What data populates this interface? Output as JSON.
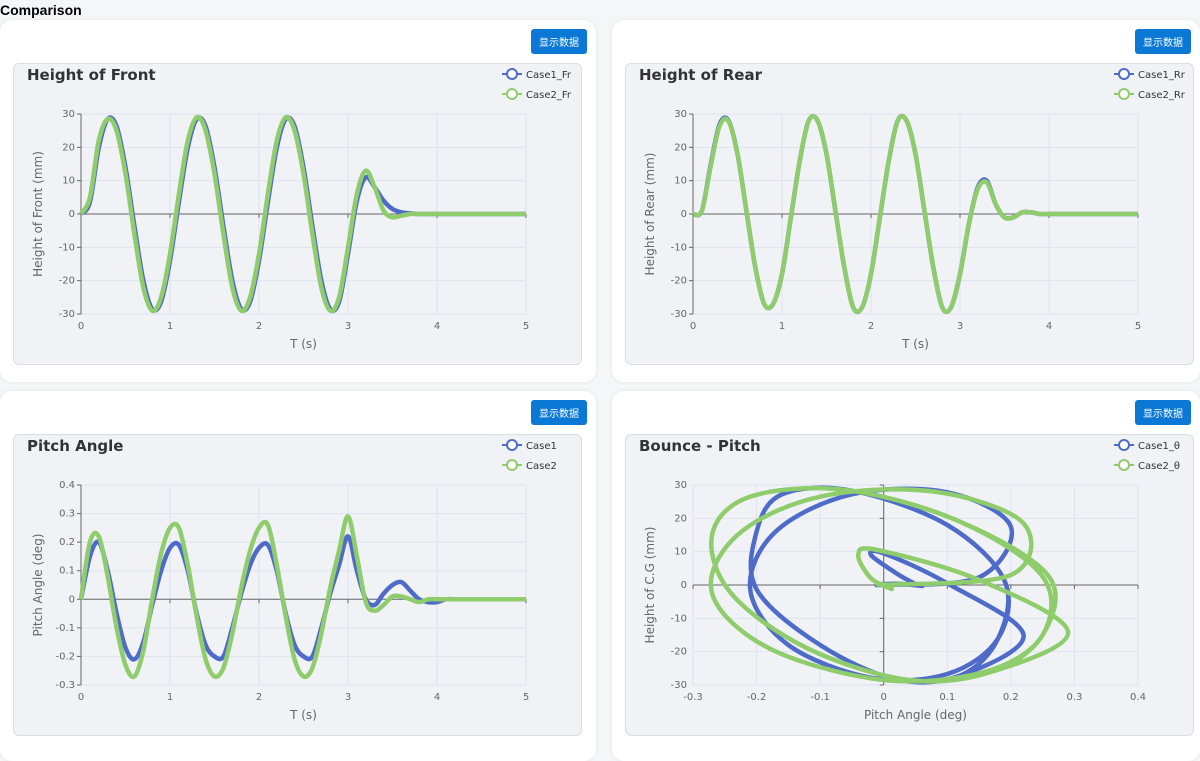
{
  "page_title": "Comparison",
  "button_label": "显示数据",
  "colors": {
    "case1": "#4f6bc9",
    "case2": "#8fcc6c"
  },
  "chart_data": [
    {
      "type": "line",
      "title": "Height of Front",
      "xlabel": "T (s)",
      "ylabel": "Height of Front (mm)",
      "xlim": [
        0,
        5
      ],
      "ylim": [
        -30,
        30
      ],
      "xticks": [
        0,
        1,
        2,
        3,
        4,
        5
      ],
      "yticks": [
        -30,
        -20,
        -10,
        0,
        10,
        20,
        30
      ],
      "grid": true,
      "legend": "top-right",
      "x_step": 0.1,
      "series": [
        {
          "name": "Case1_Fr",
          "values": [
            0,
            3.6,
            19.9,
            28.5,
            26.3,
            14,
            -3.6,
            -19.9,
            -28.5,
            -26.3,
            -14,
            3.6,
            19.9,
            28.5,
            26.3,
            14,
            -3.6,
            -19.9,
            -28.5,
            -26.3,
            -14,
            3.6,
            19.9,
            28.5,
            26.3,
            14,
            -3.6,
            -19.9,
            -28.5,
            -26.3,
            -12,
            4,
            11,
            8,
            4,
            1.5,
            0.5,
            0.2,
            0,
            0,
            0,
            0,
            0,
            0,
            0,
            0,
            0,
            0,
            0,
            0,
            0
          ]
        },
        {
          "name": "Case2_Fr",
          "values": [
            0,
            5,
            22,
            28.5,
            25,
            12,
            -6,
            -22,
            -29,
            -25,
            -12,
            6,
            22,
            29,
            25,
            12,
            -6,
            -22,
            -29,
            -25,
            -12,
            6,
            22,
            29,
            25,
            12,
            -6,
            -22,
            -29,
            -25,
            -10,
            6,
            13,
            8,
            1,
            -1,
            -0.5,
            0,
            0,
            0,
            0,
            0,
            0,
            0,
            0,
            0,
            0,
            0,
            0,
            0,
            0
          ]
        }
      ]
    },
    {
      "type": "line",
      "title": "Height of Rear",
      "xlabel": "T (s)",
      "ylabel": "Height of Rear (mm)",
      "xlim": [
        0,
        5
      ],
      "ylim": [
        -30,
        30
      ],
      "xticks": [
        0,
        1,
        2,
        3,
        4,
        5
      ],
      "yticks": [
        -30,
        -20,
        -10,
        0,
        10,
        20,
        30
      ],
      "grid": true,
      "legend": "top-right",
      "x_step": 0.1,
      "series": [
        {
          "name": "Case1_Rr",
          "values": [
            0,
            1,
            15,
            27,
            28,
            18,
            1,
            -16,
            -27,
            -27,
            -18,
            -1,
            16,
            28,
            28,
            18,
            1,
            -16,
            -28,
            -28,
            -18,
            -1,
            16,
            28,
            28,
            18,
            1,
            -16,
            -28,
            -28,
            -18,
            -3,
            8,
            10,
            3,
            -1,
            -1,
            0.5,
            0.5,
            0,
            0,
            0,
            0,
            0,
            0,
            0,
            0,
            0,
            0,
            0,
            0
          ]
        },
        {
          "name": "Case2_Rr",
          "values": [
            0,
            1,
            14.5,
            26.5,
            27.8,
            18,
            1,
            -16,
            -27,
            -27,
            -18,
            -1,
            16,
            28,
            28,
            18,
            1,
            -16,
            -28,
            -28,
            -18,
            -1,
            16,
            28,
            28,
            18,
            1,
            -16,
            -28,
            -28,
            -18,
            -3,
            7.5,
            9.5,
            3,
            -1,
            -1,
            0.5,
            0.5,
            0,
            0,
            0,
            0,
            0,
            0,
            0,
            0,
            0,
            0,
            0,
            0
          ]
        }
      ]
    },
    {
      "type": "line",
      "title": "Pitch Angle",
      "xlabel": "T (s)",
      "ylabel": "Pitch Angle (deg)",
      "xlim": [
        0,
        5
      ],
      "ylim": [
        -0.3,
        0.4
      ],
      "xticks": [
        0,
        1,
        2,
        3,
        4,
        5
      ],
      "yticks": [
        -0.3,
        -0.2,
        -0.1,
        0,
        0.1,
        0.2,
        0.3,
        0.4
      ],
      "grid": true,
      "legend": "top-right",
      "x_step": 0.1,
      "series": [
        {
          "name": "Case1",
          "values": [
            0,
            0.15,
            0.2,
            0.1,
            -0.05,
            -0.17,
            -0.21,
            -0.15,
            -0.02,
            0.1,
            0.18,
            0.19,
            0.1,
            -0.05,
            -0.16,
            -0.2,
            -0.2,
            -0.1,
            0.02,
            0.12,
            0.18,
            0.19,
            0.1,
            -0.05,
            -0.16,
            -0.2,
            -0.2,
            -0.1,
            0.02,
            0.12,
            0.22,
            0.1,
            0,
            -0.02,
            0.02,
            0.05,
            0.06,
            0.03,
            0,
            -0.01,
            -0.01,
            0,
            0,
            0,
            0,
            0,
            0,
            0,
            0,
            0,
            0
          ]
        },
        {
          "name": "Case2",
          "values": [
            0,
            0.2,
            0.22,
            0.08,
            -0.1,
            -0.23,
            -0.27,
            -0.18,
            0,
            0.16,
            0.25,
            0.25,
            0.12,
            -0.06,
            -0.21,
            -0.27,
            -0.24,
            -0.12,
            0.04,
            0.17,
            0.25,
            0.26,
            0.12,
            -0.06,
            -0.21,
            -0.27,
            -0.24,
            -0.12,
            0.04,
            0.17,
            0.29,
            0.15,
            -0.01,
            -0.04,
            -0.02,
            0.01,
            0.01,
            0,
            -0.01,
            0,
            0,
            0,
            0,
            0,
            0,
            0,
            0,
            0,
            0,
            0,
            0
          ]
        }
      ]
    },
    {
      "type": "scatter-line",
      "title": "Bounce - Pitch",
      "xlabel": "Pitch Angle (deg)",
      "ylabel": "Height of C.G (mm)",
      "xlim": [
        -0.3,
        0.4
      ],
      "ylim": [
        -30,
        30
      ],
      "xticks": [
        -0.3,
        -0.2,
        -0.1,
        0,
        0.1,
        0.2,
        0.3,
        0.4
      ],
      "yticks": [
        -30,
        -20,
        -10,
        0,
        10,
        20,
        30
      ],
      "grid": true,
      "legend": "top-right",
      "series": [
        {
          "name": "Case1_θ",
          "x": [
            0,
            0.15,
            0.2,
            0.1,
            -0.05,
            -0.17,
            -0.21,
            -0.15,
            -0.02,
            0.1,
            0.18,
            0.19,
            0.1,
            -0.05,
            -0.16,
            -0.2,
            -0.2,
            -0.1,
            0.02,
            0.12,
            0.18,
            0.19,
            0.1,
            -0.05,
            -0.16,
            -0.2,
            -0.2,
            -0.1,
            0.02,
            0.12,
            0.22,
            0.1,
            0,
            -0.02,
            0.02,
            0.05,
            0.06,
            0.03,
            0,
            -0.01,
            -0.01,
            0
          ],
          "y": [
            0,
            2.3,
            17.5,
            27.8,
            27.2,
            16,
            -1.3,
            -18,
            -27.8,
            -26.7,
            -16,
            1.3,
            18,
            28.3,
            27.2,
            16,
            -1.3,
            -18,
            -28.3,
            -27.2,
            -16,
            1.3,
            18,
            28.3,
            27.2,
            16,
            -1.3,
            -18,
            -28.3,
            -27.2,
            -15,
            0.5,
            9.5,
            9,
            3.5,
            0.3,
            -0.3,
            0.3,
            0.3,
            0,
            0,
            0
          ]
        },
        {
          "name": "Case2_θ",
          "x": [
            0,
            0.2,
            0.22,
            0.08,
            -0.1,
            -0.23,
            -0.27,
            -0.18,
            0,
            0.16,
            0.25,
            0.25,
            0.12,
            -0.06,
            -0.21,
            -0.27,
            -0.24,
            -0.12,
            0.04,
            0.17,
            0.25,
            0.26,
            0.12,
            -0.06,
            -0.21,
            -0.27,
            -0.24,
            -0.12,
            0.04,
            0.17,
            0.29,
            0.15,
            -0.01,
            -0.04,
            -0.02,
            0.01,
            0.01,
            0,
            -0.01,
            0,
            0,
            0
          ],
          "y": [
            0,
            3,
            18.5,
            28,
            26.5,
            15,
            -2.5,
            -19,
            -28.5,
            -26,
            -15,
            2.5,
            19,
            28.5,
            26.5,
            15,
            -2.5,
            -19,
            -28.5,
            -26,
            -15,
            2.5,
            19,
            28.5,
            26.5,
            15,
            -2.5,
            -19,
            -28.5,
            -26,
            -14,
            1.5,
            10.5,
            9,
            2,
            -1,
            -0.8,
            0.2,
            0.2,
            0,
            0,
            0
          ]
        }
      ]
    }
  ]
}
